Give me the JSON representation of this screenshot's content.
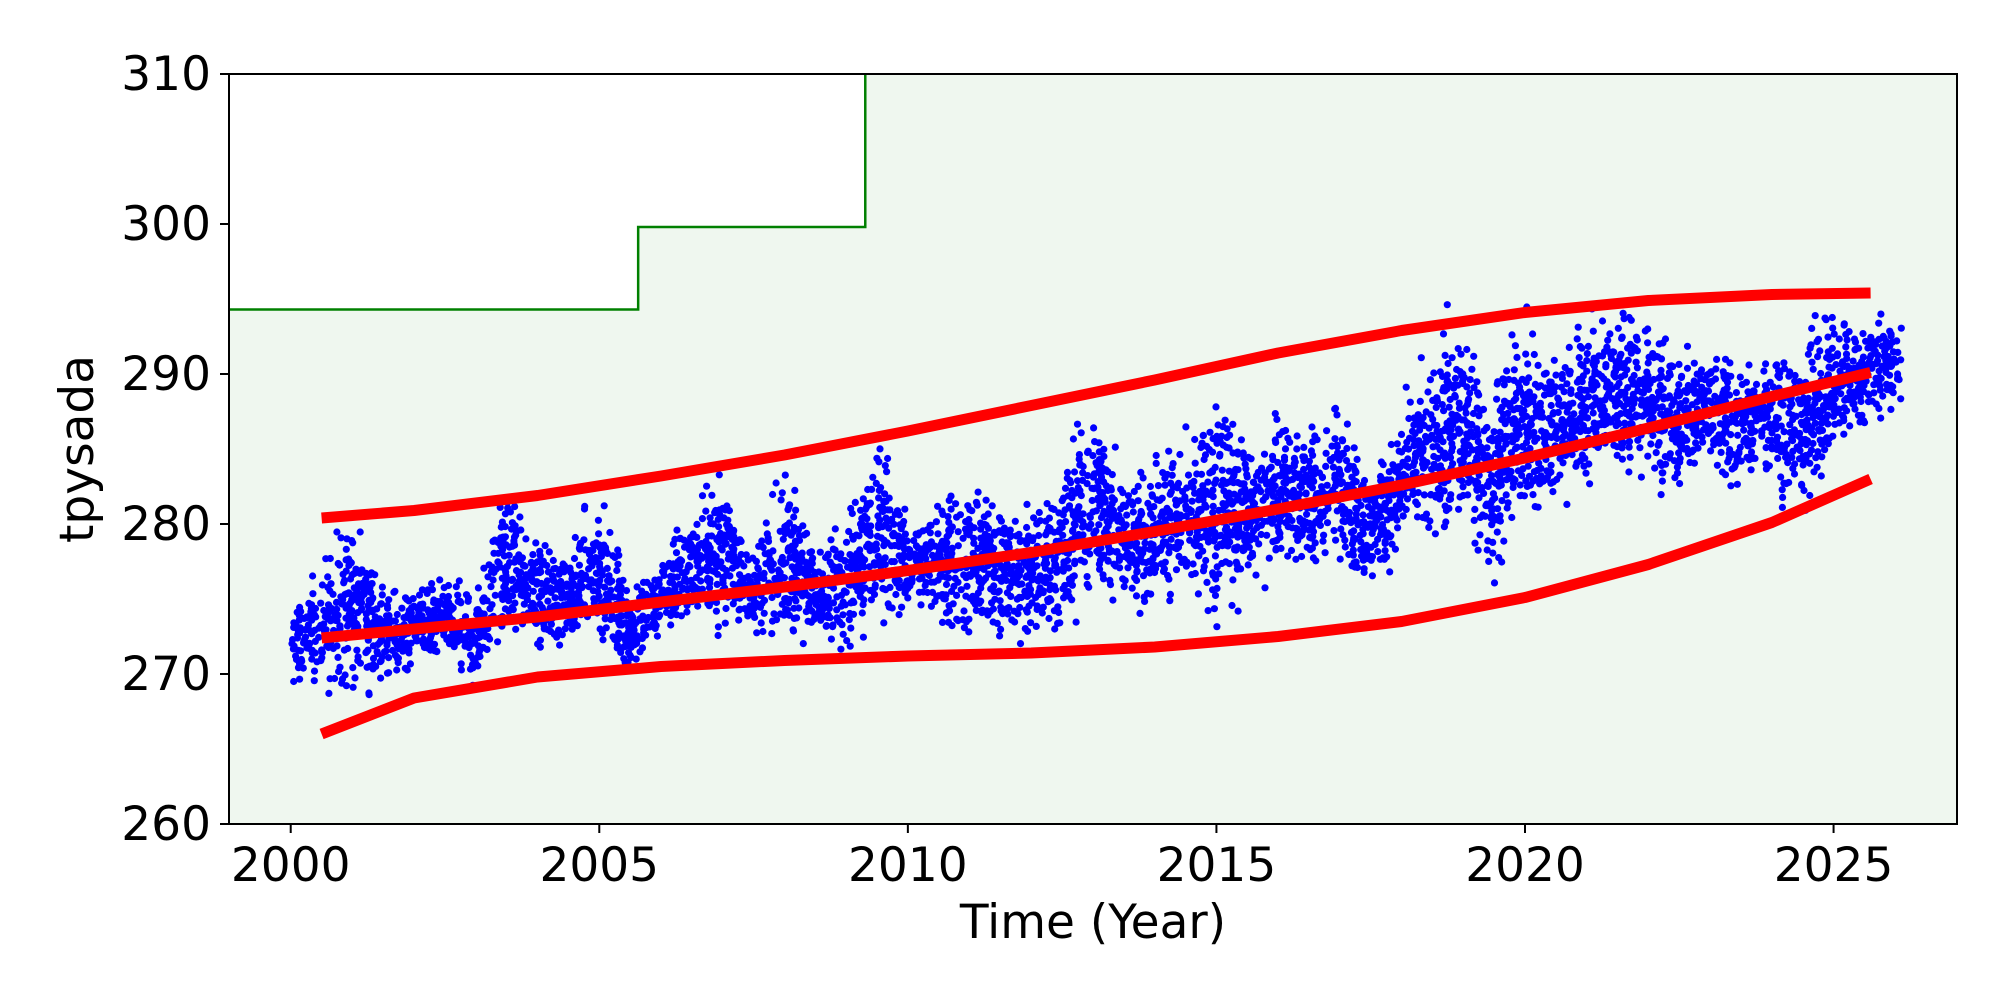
{
  "chart_data": {
    "type": "scatter",
    "title": "",
    "xlabel": "Time (Year)",
    "ylabel": "tpysada",
    "xlim": [
      1999.0,
      2027.0
    ],
    "ylim": [
      260,
      310
    ],
    "xticks": [
      2000,
      2005,
      2010,
      2015,
      2020,
      2025
    ],
    "yticks": [
      260,
      270,
      280,
      290,
      300,
      310
    ],
    "x_tick_labels": [
      "2000",
      "2005",
      "2010",
      "2015",
      "2020",
      "2025"
    ],
    "y_tick_labels": [
      "260",
      "270",
      "280",
      "290",
      "300",
      "310"
    ],
    "grid": false,
    "legend": "none",
    "colors": {
      "points": "#0000ff",
      "trend": "#ff0000",
      "threshold_line": "#008000",
      "threshold_fill": "#eff7ef",
      "plot_background": "#ffffff"
    },
    "threshold_step": {
      "x": [
        1999.0,
        2005.63,
        2005.63,
        2009.31,
        2009.31
      ],
      "y": [
        294.3,
        294.3,
        299.8,
        299.8,
        310
      ]
    },
    "trend_lines": [
      {
        "role": "upper",
        "x": [
          2000.5,
          2002,
          2004,
          2006,
          2008,
          2010,
          2012,
          2014,
          2016,
          2018,
          2020,
          2022,
          2024,
          2025.6
        ],
        "y": [
          280.4,
          280.9,
          281.9,
          283.2,
          284.6,
          286.2,
          287.9,
          289.6,
          291.4,
          292.9,
          294.1,
          294.9,
          295.3,
          295.4
        ]
      },
      {
        "role": "center",
        "x": [
          2000.5,
          2002,
          2004,
          2006,
          2008,
          2010,
          2012,
          2014,
          2016,
          2018,
          2020,
          2022,
          2024,
          2025.6
        ],
        "y": [
          272.4,
          273.0,
          273.8,
          274.8,
          275.8,
          276.9,
          278.1,
          279.5,
          281.0,
          282.6,
          284.4,
          286.4,
          288.5,
          290.1
        ]
      },
      {
        "role": "lower",
        "x": [
          2000.5,
          2002,
          2004,
          2006,
          2008,
          2010,
          2012,
          2014,
          2016,
          2018,
          2020,
          2022,
          2024,
          2025.6
        ],
        "y": [
          266.0,
          268.4,
          269.8,
          270.5,
          270.9,
          271.2,
          271.4,
          271.8,
          272.5,
          273.5,
          275.1,
          277.3,
          280.1,
          283.0
        ]
      }
    ],
    "scatter_bands": [
      {
        "x": 2000.0,
        "lo": 269,
        "hi": 274
      },
      {
        "x": 2000.5,
        "lo": 268,
        "hi": 279
      },
      {
        "x": 2001.0,
        "lo": 267,
        "hi": 282
      },
      {
        "x": 2001.5,
        "lo": 269,
        "hi": 277
      },
      {
        "x": 2002.0,
        "lo": 270,
        "hi": 276
      },
      {
        "x": 2002.5,
        "lo": 271,
        "hi": 277
      },
      {
        "x": 2003.0,
        "lo": 268,
        "hi": 276
      },
      {
        "x": 2003.5,
        "lo": 271,
        "hi": 284
      },
      {
        "x": 2004.0,
        "lo": 270,
        "hi": 280
      },
      {
        "x": 2004.5,
        "lo": 271,
        "hi": 279
      },
      {
        "x": 2005.0,
        "lo": 271,
        "hi": 284
      },
      {
        "x": 2005.5,
        "lo": 269,
        "hi": 276
      },
      {
        "x": 2006.0,
        "lo": 272,
        "hi": 279
      },
      {
        "x": 2006.5,
        "lo": 272,
        "hi": 282
      },
      {
        "x": 2007.0,
        "lo": 272,
        "hi": 285
      },
      {
        "x": 2007.5,
        "lo": 272,
        "hi": 278
      },
      {
        "x": 2008.0,
        "lo": 271,
        "hi": 286
      },
      {
        "x": 2008.5,
        "lo": 272,
        "hi": 279
      },
      {
        "x": 2009.0,
        "lo": 270,
        "hi": 282
      },
      {
        "x": 2009.5,
        "lo": 272,
        "hi": 287
      },
      {
        "x": 2010.0,
        "lo": 273,
        "hi": 281
      },
      {
        "x": 2010.5,
        "lo": 273,
        "hi": 282
      },
      {
        "x": 2011.0,
        "lo": 270,
        "hi": 285
      },
      {
        "x": 2011.5,
        "lo": 271,
        "hi": 283
      },
      {
        "x": 2012.0,
        "lo": 271,
        "hi": 282
      },
      {
        "x": 2012.5,
        "lo": 271,
        "hi": 285
      },
      {
        "x": 2013.0,
        "lo": 274,
        "hi": 290
      },
      {
        "x": 2013.5,
        "lo": 273,
        "hi": 284
      },
      {
        "x": 2014.0,
        "lo": 274,
        "hi": 285
      },
      {
        "x": 2014.5,
        "lo": 274,
        "hi": 287
      },
      {
        "x": 2015.0,
        "lo": 272,
        "hi": 291
      },
      {
        "x": 2015.5,
        "lo": 275,
        "hi": 286
      },
      {
        "x": 2016.0,
        "lo": 276,
        "hi": 288
      },
      {
        "x": 2016.5,
        "lo": 276,
        "hi": 287
      },
      {
        "x": 2017.0,
        "lo": 276,
        "hi": 289
      },
      {
        "x": 2017.5,
        "lo": 273,
        "hi": 286
      },
      {
        "x": 2018.0,
        "lo": 278,
        "hi": 288
      },
      {
        "x": 2018.5,
        "lo": 277,
        "hi": 295
      },
      {
        "x": 2019.0,
        "lo": 279,
        "hi": 294
      },
      {
        "x": 2019.5,
        "lo": 274,
        "hi": 292
      },
      {
        "x": 2020.0,
        "lo": 280,
        "hi": 295
      },
      {
        "x": 2020.5,
        "lo": 280,
        "hi": 293
      },
      {
        "x": 2021.0,
        "lo": 281,
        "hi": 295
      },
      {
        "x": 2021.5,
        "lo": 282,
        "hi": 295
      },
      {
        "x": 2022.0,
        "lo": 282,
        "hi": 295
      },
      {
        "x": 2022.5,
        "lo": 281,
        "hi": 293
      },
      {
        "x": 2023.0,
        "lo": 283,
        "hi": 292
      },
      {
        "x": 2023.5,
        "lo": 281,
        "hi": 292
      },
      {
        "x": 2024.0,
        "lo": 282,
        "hi": 293
      },
      {
        "x": 2024.5,
        "lo": 279,
        "hi": 294
      },
      {
        "x": 2025.0,
        "lo": 284,
        "hi": 295
      },
      {
        "x": 2025.5,
        "lo": 285,
        "hi": 295
      },
      {
        "x": 2026.1,
        "lo": 287,
        "hi": 295
      }
    ]
  }
}
